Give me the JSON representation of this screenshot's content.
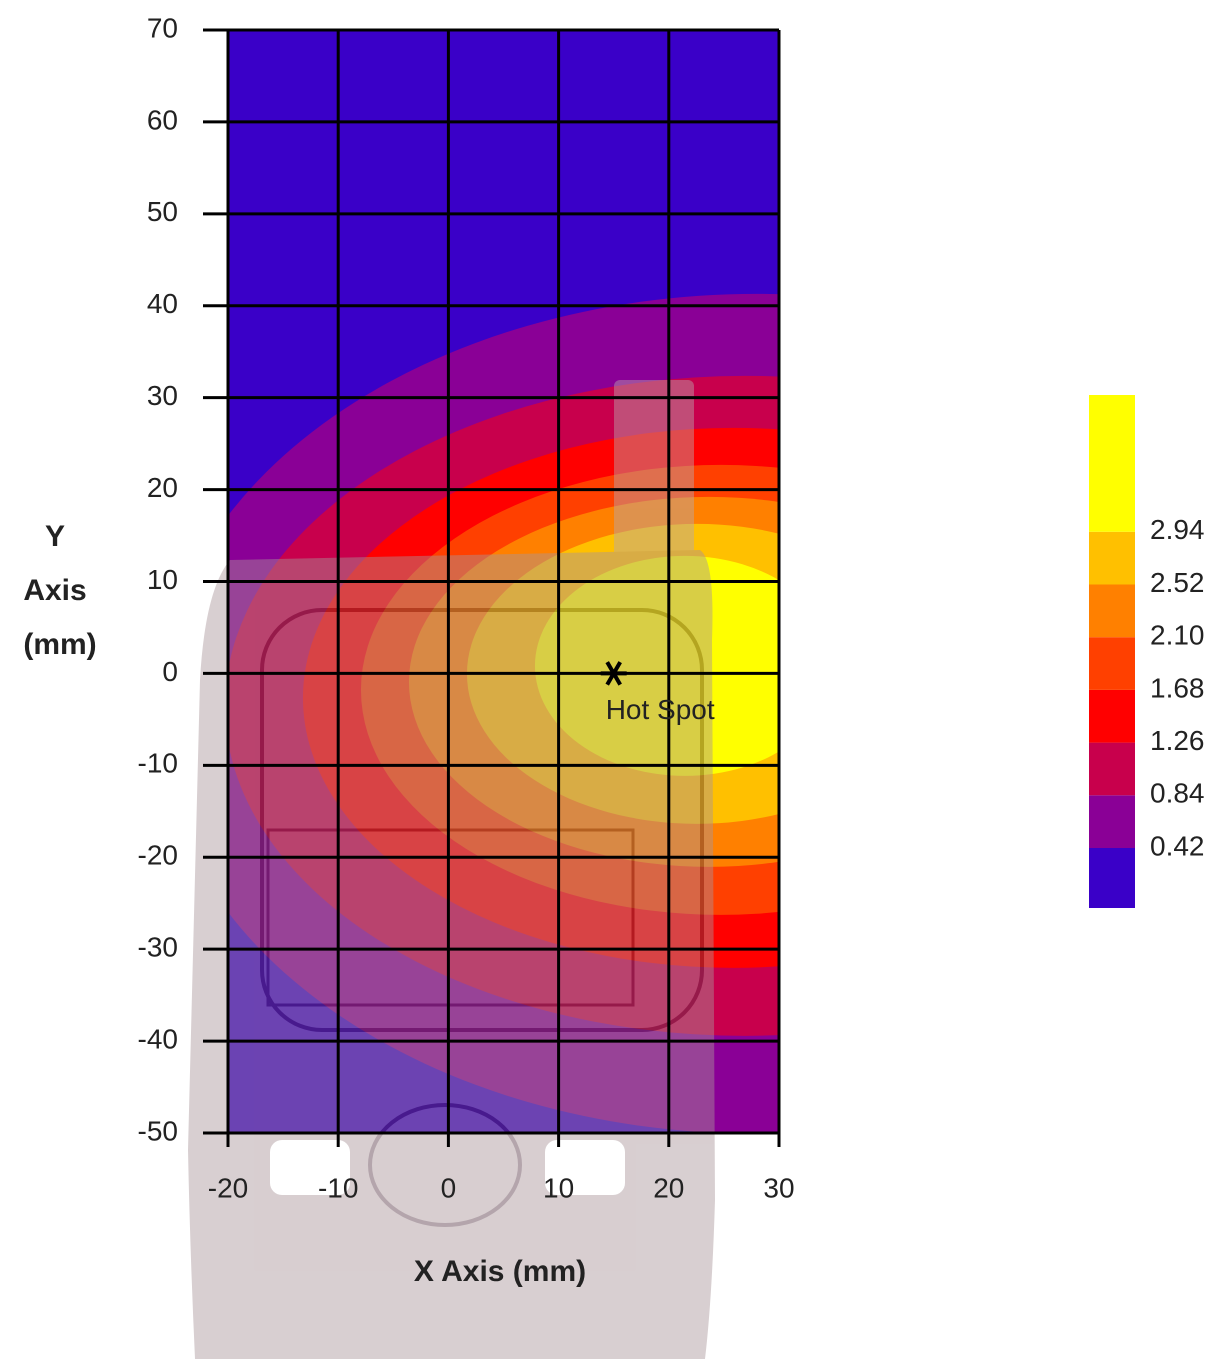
{
  "chart_data": {
    "type": "contour",
    "xlabel": "X Axis (mm)",
    "ylabel": [
      "Y",
      "Axis",
      "(mm)"
    ],
    "xlim": [
      -20,
      30
    ],
    "ylim": [
      -50,
      70
    ],
    "xticks": [
      -20,
      -10,
      0,
      10,
      20,
      30
    ],
    "yticks": [
      -50,
      -40,
      -30,
      -20,
      -10,
      0,
      10,
      20,
      30,
      40,
      50,
      60,
      70
    ],
    "grid": true,
    "annotations": [
      {
        "text": "Hot Spot",
        "x": 15,
        "y": 0
      }
    ],
    "colorbar": {
      "ticks": [
        0.42,
        0.84,
        1.26,
        1.68,
        {
          "value": 2.1,
          "label": "2.10"
        },
        2.52,
        2.94
      ],
      "colors": [
        "#3a00c8",
        "#8a0096",
        "#c8004c",
        "#ff0000",
        "#ff4000",
        "#ff8000",
        "#ffc000",
        "#ffff00"
      ]
    }
  }
}
